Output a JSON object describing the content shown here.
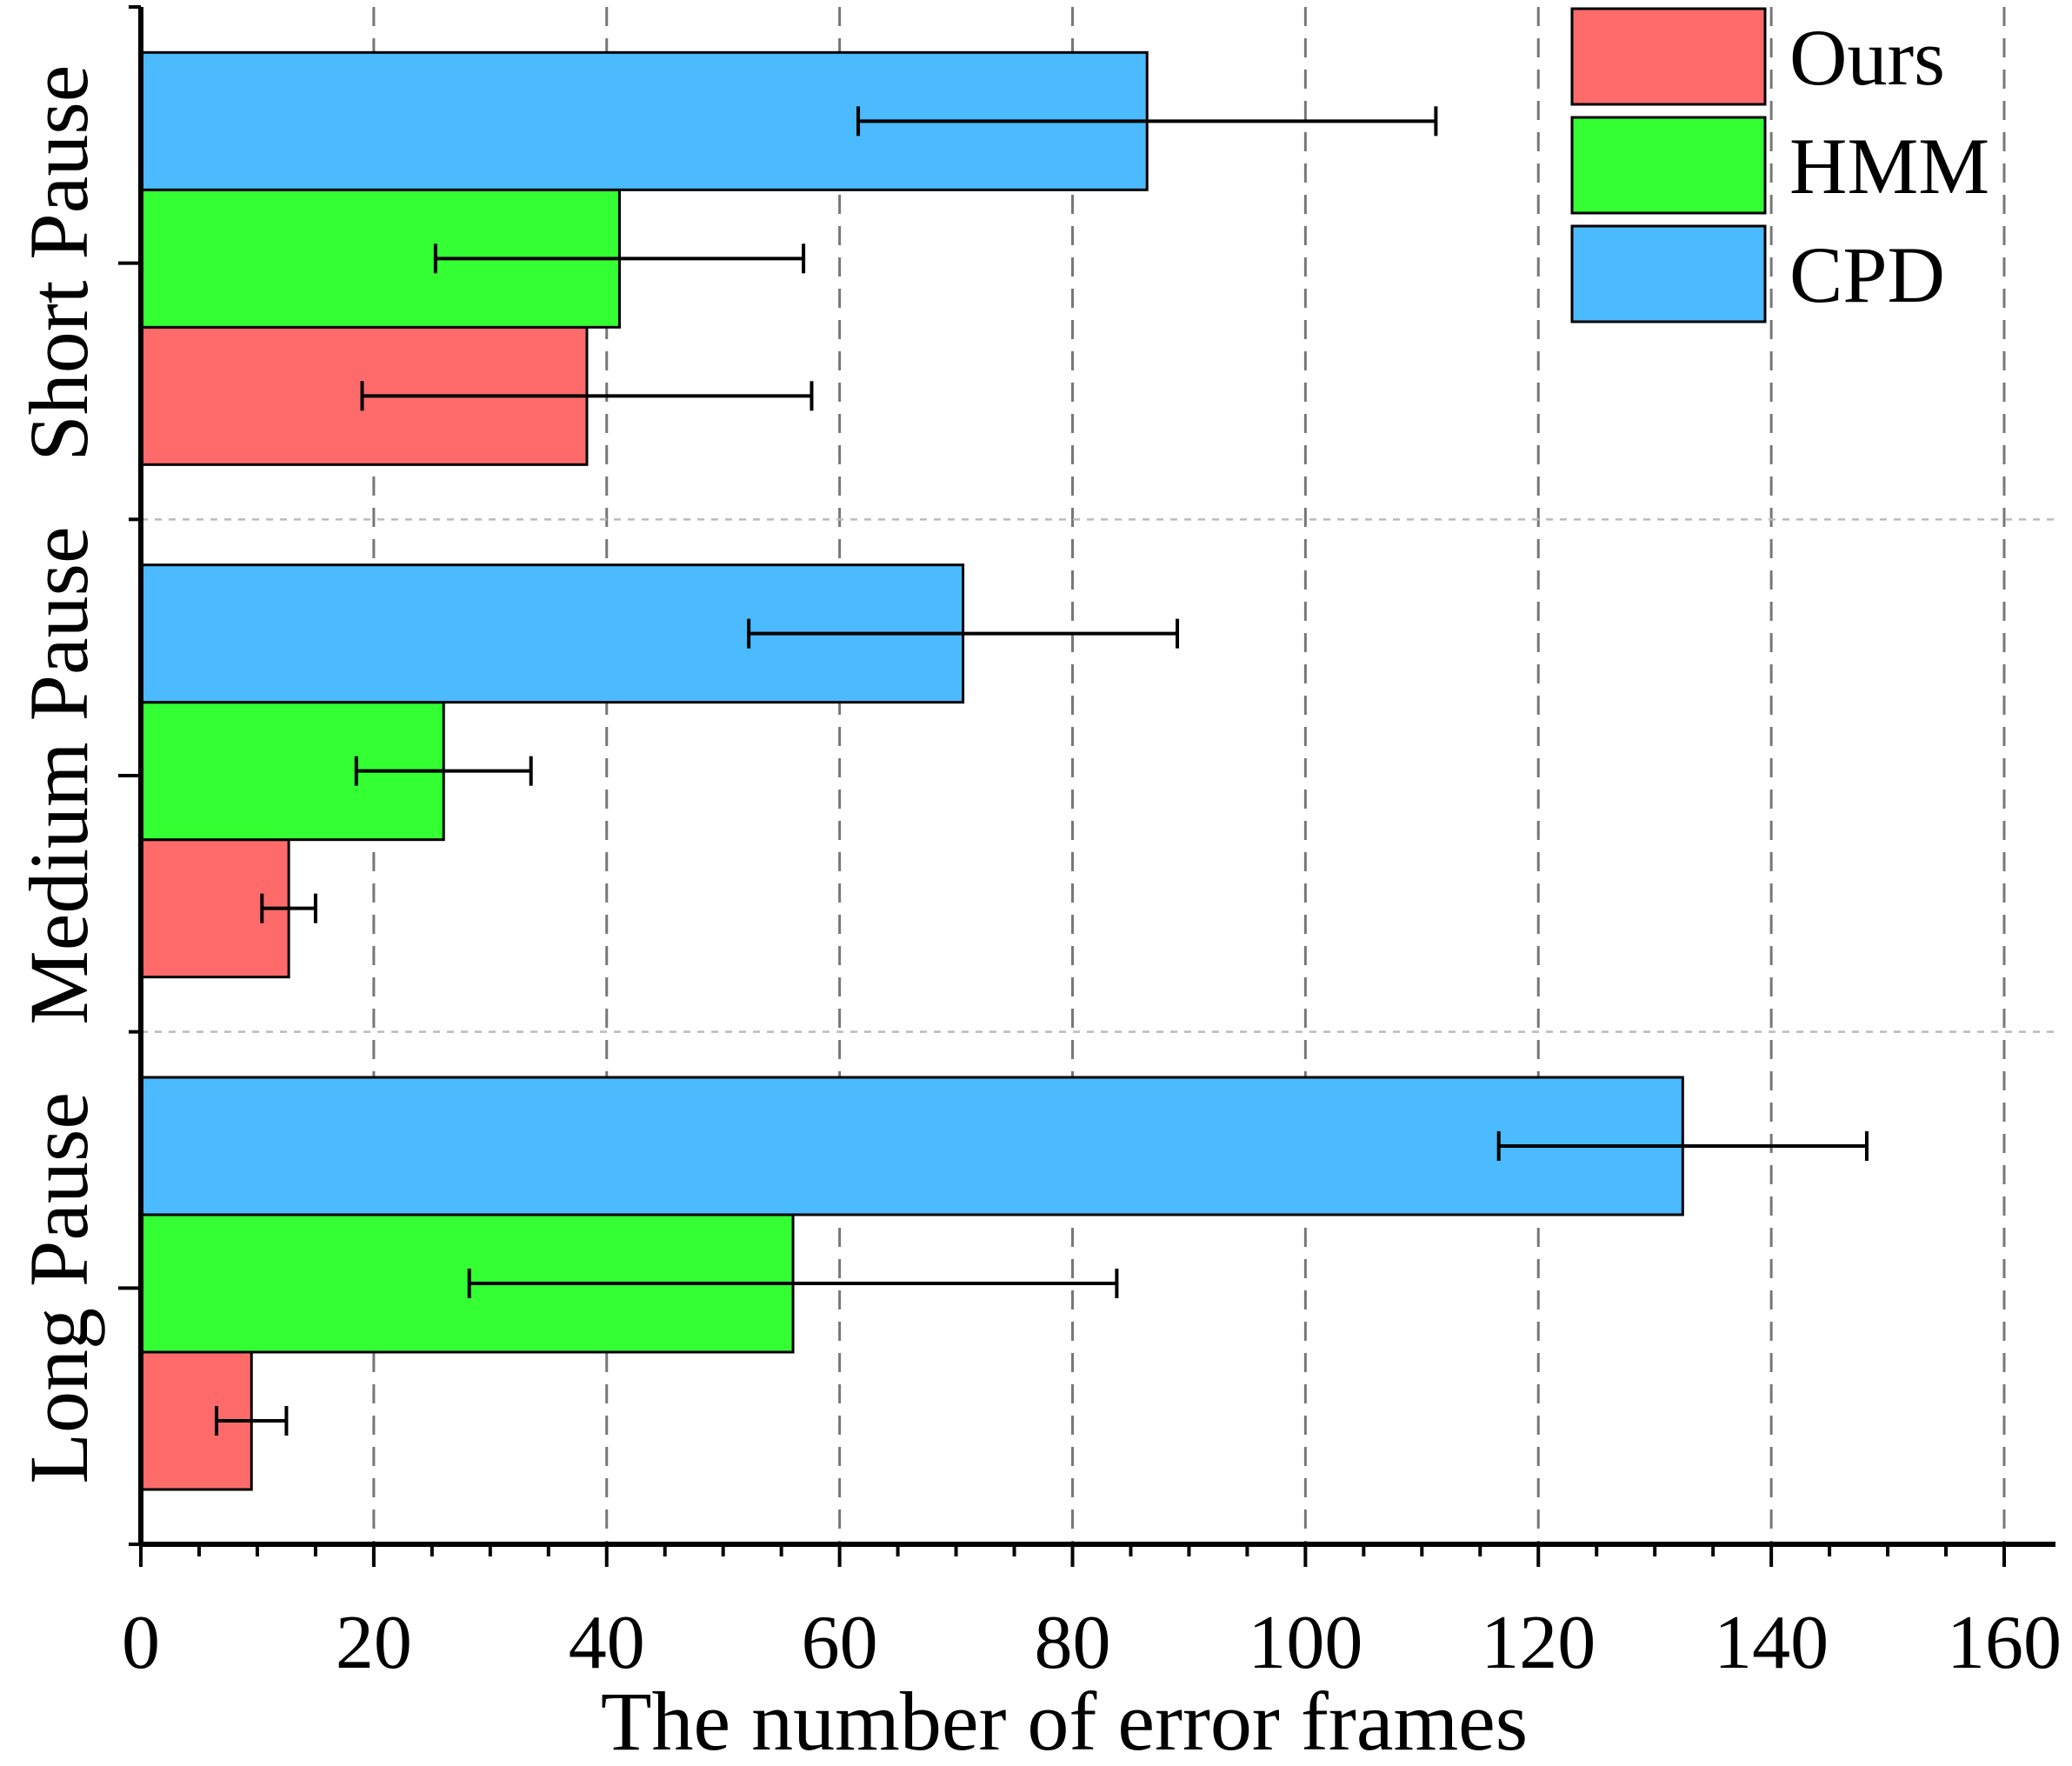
{
  "chart_data": {
    "type": "bar",
    "orientation": "horizontal",
    "categories": [
      "Long Pause",
      "Medium Pause",
      "Short Pause"
    ],
    "series": [
      {
        "name": "Ours",
        "color": "#FF6B6B",
        "values": [
          9.5,
          12.7,
          38.3
        ],
        "errors": [
          3.0,
          2.3,
          19.3
        ]
      },
      {
        "name": "HMM",
        "color": "#33FF33",
        "values": [
          56.0,
          26.0,
          41.1
        ],
        "errors": [
          27.8,
          7.5,
          15.8
        ]
      },
      {
        "name": "CPD",
        "color": "#4BBAFF",
        "values": [
          132.4,
          70.6,
          86.4
        ],
        "errors": [
          15.8,
          18.4,
          24.8
        ]
      }
    ],
    "xlabel": "The number of error frames",
    "ylabel": "",
    "xlim": [
      0,
      164
    ],
    "xticks": [
      0,
      20,
      40,
      60,
      80,
      100,
      120,
      140,
      160
    ],
    "xtick_labels": [
      "0",
      "20",
      "40",
      "60",
      "80",
      "100",
      "120",
      "140",
      "160"
    ],
    "grid": "vertical dashed",
    "legend": {
      "position": "top-right",
      "order": [
        "Ours",
        "HMM",
        "CPD"
      ]
    }
  }
}
